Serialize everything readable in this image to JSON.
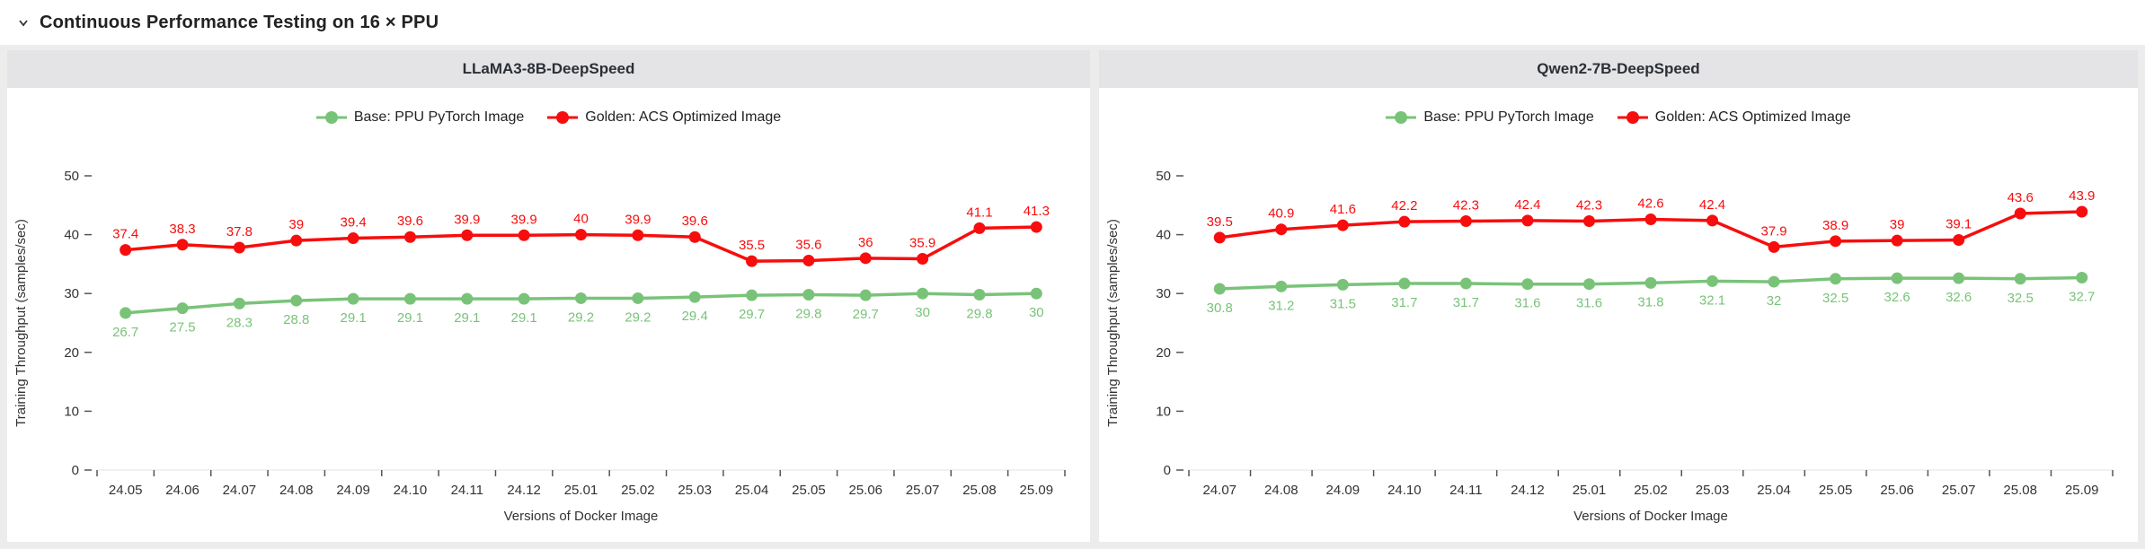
{
  "page": {
    "title": "Continuous Performance Testing on 16 × PPU"
  },
  "colors": {
    "base_series": "#79c379",
    "golden_series": "#f70d0d",
    "axis_text": "#333333",
    "tick_mark": "#555555",
    "card_header_bg": "#e4e4e6"
  },
  "chart_data": [
    {
      "type": "line",
      "title": "LLaMA3-8B-DeepSpeed",
      "xlabel": "Versions of Docker Image",
      "ylabel": "Training Throughput (samples/sec)",
      "ylim": [
        0,
        50
      ],
      "yticks": [
        0,
        10,
        20,
        30,
        40,
        50
      ],
      "grid": false,
      "legend_position": "top",
      "categories": [
        "24.05",
        "24.06",
        "24.07",
        "24.08",
        "24.09",
        "24.10",
        "24.11",
        "24.12",
        "25.01",
        "25.02",
        "25.03",
        "25.04",
        "25.05",
        "25.06",
        "25.07",
        "25.08",
        "25.09"
      ],
      "series": [
        {
          "name": "Base: PPU PyTorch Image",
          "color": "#79c379",
          "label_position": "below",
          "values": [
            26.7,
            27.5,
            28.3,
            28.8,
            29.1,
            29.1,
            29.1,
            29.1,
            29.2,
            29.2,
            29.4,
            29.7,
            29.8,
            29.7,
            30,
            29.8,
            30
          ]
        },
        {
          "name": "Golden: ACS Optimized Image",
          "color": "#f70d0d",
          "label_position": "above",
          "values": [
            37.4,
            38.3,
            37.8,
            39,
            39.4,
            39.6,
            39.9,
            39.9,
            40,
            39.9,
            39.6,
            35.5,
            35.6,
            36,
            35.9,
            41.1,
            41.3
          ]
        }
      ]
    },
    {
      "type": "line",
      "title": "Qwen2-7B-DeepSpeed",
      "xlabel": "Versions of Docker Image",
      "ylabel": "Training Throughput (samples/sec)",
      "ylim": [
        0,
        50
      ],
      "yticks": [
        0,
        10,
        20,
        30,
        40,
        50
      ],
      "grid": false,
      "legend_position": "top",
      "categories": [
        "24.07",
        "24.08",
        "24.09",
        "24.10",
        "24.11",
        "24.12",
        "25.01",
        "25.02",
        "25.03",
        "25.04",
        "25.05",
        "25.06",
        "25.07",
        "25.08",
        "25.09"
      ],
      "series": [
        {
          "name": "Base: PPU PyTorch Image",
          "color": "#79c379",
          "label_position": "below",
          "values": [
            30.8,
            31.2,
            31.5,
            31.7,
            31.7,
            31.6,
            31.6,
            31.8,
            32.1,
            32,
            32.5,
            32.6,
            32.6,
            32.5,
            32.7
          ]
        },
        {
          "name": "Golden: ACS Optimized Image",
          "color": "#f70d0d",
          "label_position": "above",
          "values": [
            39.5,
            40.9,
            41.6,
            42.2,
            42.3,
            42.4,
            42.3,
            42.6,
            42.4,
            37.9,
            38.9,
            39,
            39.1,
            43.6,
            43.9
          ]
        }
      ]
    }
  ]
}
